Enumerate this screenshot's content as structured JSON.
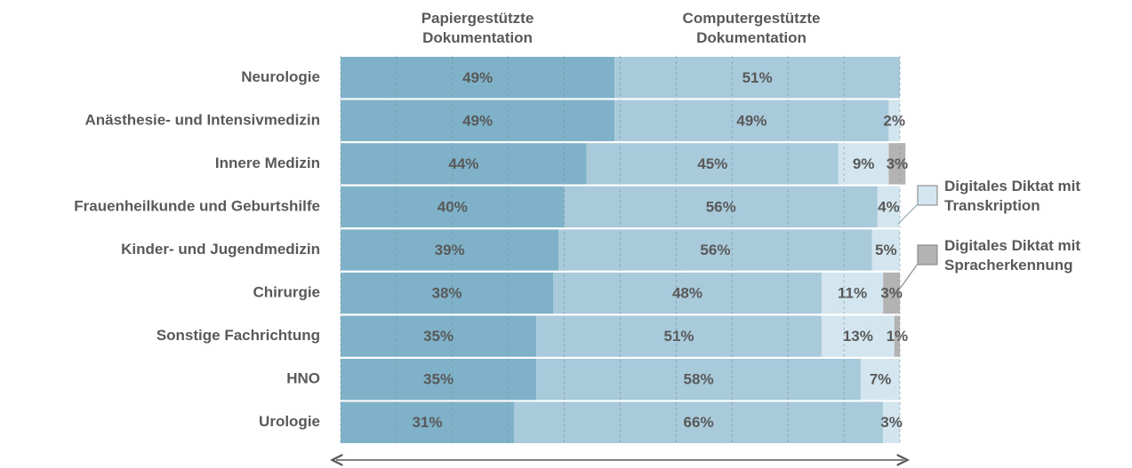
{
  "chart_data": {
    "type": "stacked_barh",
    "categories": [
      "Neurologie",
      "Anästhesie- und Intensivmedizin",
      "Innere Medizin",
      "Frauenheilkunde und Geburtshilfe",
      "Kinder- und Jugendmedizin",
      "Chirurgie",
      "Sonstige Fachrichtung",
      "HNO",
      "Urologie"
    ],
    "series": [
      {
        "name": "Papiergestützte Dokumentation",
        "color": "#7fb2c8",
        "values": [
          49,
          49,
          44,
          40,
          39,
          38,
          35,
          35,
          31
        ],
        "value_labels": [
          "49%",
          "49%",
          "44%",
          "40%",
          "39%",
          "38%",
          "35%",
          "35%",
          "31%"
        ]
      },
      {
        "name": "Computergestützte Dokumentation",
        "color": "#a9cadb",
        "values": [
          51,
          49,
          45,
          56,
          56,
          48,
          51,
          58,
          66
        ],
        "value_labels": [
          "51%",
          "49%",
          "45%",
          "56%",
          "56%",
          "48%",
          "51%",
          "58%",
          "66%"
        ]
      },
      {
        "name": "Digitales Diktat mit Transkription",
        "color": "#d3e6ef",
        "values": [
          0,
          2,
          9,
          4,
          5,
          11,
          13,
          7,
          3
        ],
        "value_labels": [
          null,
          "2%",
          "9%",
          "4%",
          "5%",
          "11%",
          "13%",
          "7%",
          "3%"
        ]
      },
      {
        "name": "Digitales Diktat mit Spracherkennung",
        "color": "#b3b3b3",
        "values": [
          0,
          0,
          3,
          0,
          0,
          3,
          1,
          0,
          0
        ],
        "value_labels": [
          null,
          null,
          "3%",
          null,
          null,
          "3%",
          "1%",
          null,
          null
        ]
      }
    ],
    "xlim": [
      0,
      100
    ],
    "xticks": [
      0,
      10,
      20,
      30,
      40,
      50,
      60,
      70,
      80,
      90,
      100
    ],
    "grid": true
  }
}
